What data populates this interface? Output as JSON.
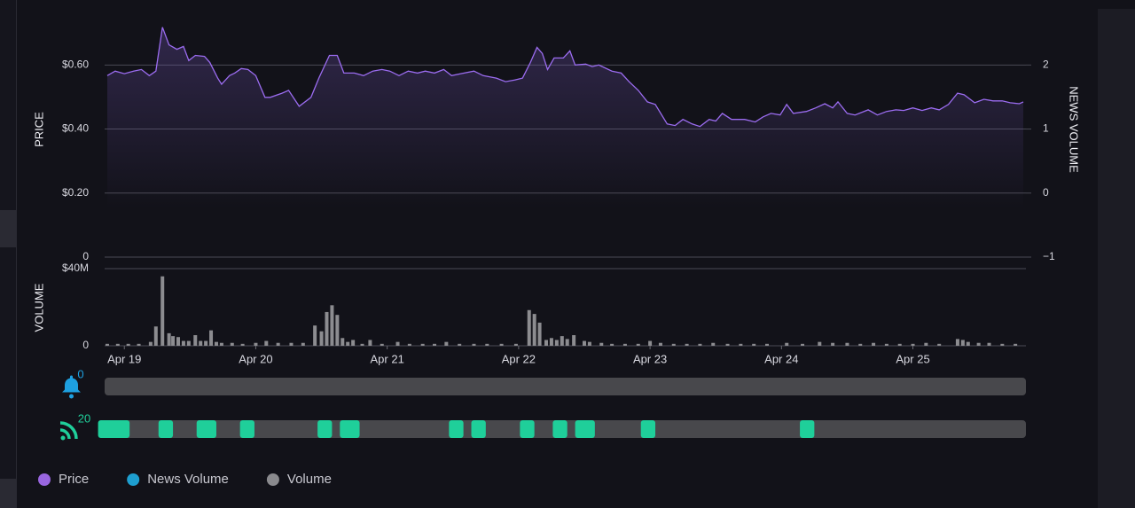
{
  "chart_data": [
    {
      "type": "line",
      "y_label": "PRICE",
      "y2_label": "NEWS VOLUME",
      "grid": true,
      "xlim": [
        18.85,
        25.86
      ],
      "ylim": [
        0,
        0.72
      ],
      "yticks": [
        {
          "value": 0.6,
          "label": "$0.60"
        },
        {
          "value": 0.4,
          "label": "$0.40"
        },
        {
          "value": 0.2,
          "label": "$0.20"
        },
        0
      ],
      "y2lim": [
        -1,
        2.6
      ],
      "y2ticks": [
        2,
        1,
        0,
        {
          "value": -1,
          "label": "−1"
        }
      ],
      "series": [
        {
          "color": "#9b6cf0",
          "x": [
            18.87,
            18.93,
            19.0,
            19.07,
            19.13,
            19.19,
            19.24,
            19.29,
            19.34,
            19.4,
            19.45,
            19.49,
            19.54,
            19.61,
            19.65,
            19.71,
            19.74,
            19.8,
            19.84,
            19.89,
            19.94,
            20.0,
            20.07,
            20.11,
            20.2,
            20.25,
            20.33,
            20.42,
            20.48,
            20.56,
            20.62,
            20.67,
            20.75,
            20.82,
            20.89,
            20.96,
            21.02,
            21.09,
            21.16,
            21.23,
            21.29,
            21.36,
            21.43,
            21.49,
            21.56,
            21.66,
            21.73,
            21.83,
            21.9,
            21.97,
            22.03,
            22.09,
            22.14,
            22.18,
            22.22,
            22.27,
            22.34,
            22.39,
            22.43,
            22.51,
            22.56,
            22.61,
            22.71,
            22.78,
            22.84,
            22.91,
            22.98,
            23.04,
            23.13,
            23.19,
            23.25,
            23.32,
            23.38,
            23.45,
            23.5,
            23.55,
            23.62,
            23.72,
            23.8,
            23.86,
            23.92,
            23.99,
            24.04,
            24.09,
            24.19,
            24.26,
            24.33,
            24.39,
            24.43,
            24.5,
            24.56,
            24.66,
            24.73,
            24.8,
            24.87,
            24.93,
            25.0,
            25.07,
            25.14,
            25.2,
            25.27,
            25.34,
            25.39,
            25.47,
            25.54,
            25.61,
            25.68,
            25.74,
            25.81,
            25.84
          ],
          "values": [
            0.567,
            0.581,
            0.573,
            0.581,
            0.586,
            0.567,
            0.581,
            0.718,
            0.663,
            0.649,
            0.658,
            0.614,
            0.63,
            0.627,
            0.608,
            0.559,
            0.54,
            0.567,
            0.575,
            0.589,
            0.586,
            0.567,
            0.499,
            0.499,
            0.512,
            0.521,
            0.471,
            0.499,
            0.559,
            0.63,
            0.63,
            0.575,
            0.575,
            0.567,
            0.581,
            0.586,
            0.581,
            0.567,
            0.581,
            0.575,
            0.581,
            0.575,
            0.586,
            0.567,
            0.573,
            0.581,
            0.567,
            0.559,
            0.548,
            0.553,
            0.559,
            0.608,
            0.655,
            0.636,
            0.586,
            0.622,
            0.622,
            0.644,
            0.6,
            0.603,
            0.595,
            0.6,
            0.581,
            0.575,
            0.548,
            0.521,
            0.485,
            0.477,
            0.416,
            0.411,
            0.43,
            0.416,
            0.408,
            0.43,
            0.425,
            0.449,
            0.43,
            0.43,
            0.422,
            0.438,
            0.449,
            0.444,
            0.477,
            0.449,
            0.455,
            0.466,
            0.479,
            0.466,
            0.485,
            0.449,
            0.444,
            0.46,
            0.444,
            0.455,
            0.46,
            0.458,
            0.466,
            0.458,
            0.466,
            0.46,
            0.477,
            0.512,
            0.507,
            0.482,
            0.493,
            0.488,
            0.488,
            0.482,
            0.479,
            0.485
          ]
        }
      ]
    },
    {
      "type": "bar",
      "y_label": "VOLUME",
      "grid": true,
      "xlim": [
        18.85,
        25.86
      ],
      "xticks": [
        {
          "value": 19,
          "label": "Apr 19"
        },
        {
          "value": 20,
          "label": "Apr 20"
        },
        {
          "value": 21,
          "label": "Apr 21"
        },
        {
          "value": 22,
          "label": "Apr 22"
        },
        {
          "value": 23,
          "label": "Apr 23"
        },
        {
          "value": 24,
          "label": "Apr 24"
        },
        {
          "value": 25,
          "label": "Apr 25"
        }
      ],
      "ylim": [
        0,
        40000000
      ],
      "yticks": [
        {
          "value": 40000000,
          "label": "$40M"
        },
        0
      ],
      "series": [
        {
          "color": "#8c8c90",
          "x": [
            18.87,
            18.95,
            19.03,
            19.11,
            19.2,
            19.24,
            19.29,
            19.34,
            19.37,
            19.41,
            19.45,
            19.49,
            19.54,
            19.58,
            19.62,
            19.66,
            19.7,
            19.74,
            19.82,
            19.9,
            20.0,
            20.08,
            20.17,
            20.27,
            20.36,
            20.45,
            20.5,
            20.54,
            20.58,
            20.62,
            20.66,
            20.7,
            20.74,
            20.81,
            20.87,
            20.96,
            21.08,
            21.17,
            21.27,
            21.36,
            21.45,
            21.55,
            21.66,
            21.76,
            21.87,
            21.98,
            22.08,
            22.12,
            22.16,
            22.21,
            22.25,
            22.29,
            22.33,
            22.37,
            22.42,
            22.5,
            22.54,
            22.63,
            22.71,
            22.81,
            22.91,
            23.0,
            23.08,
            23.18,
            23.28,
            23.38,
            23.48,
            23.59,
            23.69,
            23.79,
            23.89,
            24.04,
            24.16,
            24.29,
            24.39,
            24.5,
            24.6,
            24.7,
            24.8,
            24.9,
            25.0,
            25.1,
            25.2,
            25.34,
            25.38,
            25.42,
            25.5,
            25.58,
            25.68,
            25.78
          ],
          "values": [
            1000000,
            1000000,
            1000000,
            1000000,
            2000000,
            10000000,
            36000000,
            6500000,
            5000000,
            4500000,
            2500000,
            2500000,
            5500000,
            2500000,
            2500000,
            8000000,
            2000000,
            1500000,
            1500000,
            1000000,
            1500000,
            2500000,
            1500000,
            1500000,
            1500000,
            10500000,
            7500000,
            17500000,
            21000000,
            16000000,
            4000000,
            2000000,
            3000000,
            1000000,
            3000000,
            1000000,
            2000000,
            1000000,
            1000000,
            1000000,
            2000000,
            1000000,
            1000000,
            1000000,
            1000000,
            1000000,
            18500000,
            16500000,
            12000000,
            3000000,
            4000000,
            3000000,
            5000000,
            3500000,
            5500000,
            2500000,
            2000000,
            1500000,
            1000000,
            1000000,
            1000000,
            2500000,
            1500000,
            1000000,
            1000000,
            1000000,
            1500000,
            1000000,
            1000000,
            1000000,
            1000000,
            1500000,
            1000000,
            2000000,
            1500000,
            1500000,
            1000000,
            1500000,
            1000000,
            1000000,
            1000000,
            1500000,
            1000000,
            3500000,
            3000000,
            2000000,
            1500000,
            1500000,
            1000000,
            1000000
          ]
        }
      ]
    },
    {
      "type": "timeline",
      "xlim": [
        18.85,
        25.86
      ],
      "alerts": {
        "count": 0,
        "color": "#1ea0e0"
      },
      "news": {
        "count": 20,
        "color": "#1fcf9a",
        "segments": [
          [
            18.8,
            19.04
          ],
          [
            19.26,
            19.37
          ],
          [
            19.55,
            19.7
          ],
          [
            19.88,
            19.99
          ],
          [
            20.47,
            20.58
          ],
          [
            20.64,
            20.79
          ],
          [
            21.47,
            21.58
          ],
          [
            21.64,
            21.75
          ],
          [
            22.01,
            22.12
          ],
          [
            22.26,
            22.37
          ],
          [
            22.43,
            22.58
          ],
          [
            22.93,
            23.04
          ],
          [
            24.14,
            24.25
          ]
        ]
      }
    }
  ],
  "legend": [
    {
      "name": "Price",
      "color": "#9966e0"
    },
    {
      "name": "News Volume",
      "color": "#1e9fd0"
    },
    {
      "name": "Volume",
      "color": "#8a8a8e"
    }
  ]
}
